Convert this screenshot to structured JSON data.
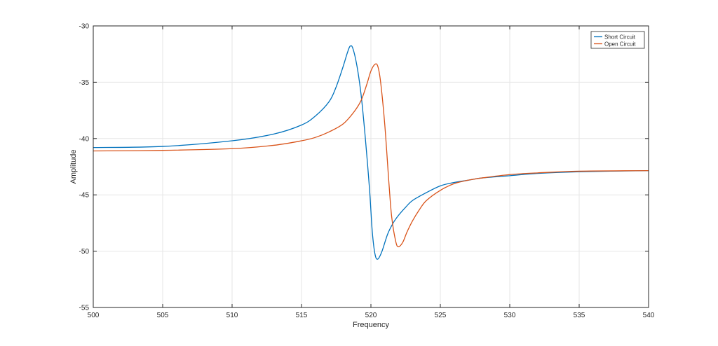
{
  "chart_data": {
    "type": "line",
    "title": "",
    "xlabel": "Frequency",
    "ylabel": "Amplitude",
    "xlim": [
      500,
      540
    ],
    "ylim": [
      -55,
      -30
    ],
    "xticks": [
      500,
      505,
      510,
      515,
      520,
      525,
      530,
      535,
      540
    ],
    "yticks": [
      -30,
      -35,
      -40,
      -45,
      -50,
      -55
    ],
    "grid": true,
    "legend_position": "top-right",
    "series": [
      {
        "name": "Short Circuit",
        "color": "#0072BD",
        "x": [
          500,
          505,
          510,
          513,
          515,
          516,
          517,
          517.5,
          518,
          518.3,
          518.5,
          518.7,
          519,
          519.3,
          519.6,
          519.9,
          520.1,
          520.3,
          520.5,
          520.8,
          521.2,
          521.6,
          522,
          522.5,
          523,
          524,
          525,
          526,
          527,
          528,
          530,
          532,
          535,
          540
        ],
        "y": [
          -40.8,
          -40.7,
          -40.2,
          -39.6,
          -38.8,
          -38.0,
          -36.7,
          -35.4,
          -33.6,
          -32.4,
          -31.8,
          -32.0,
          -33.6,
          -36.2,
          -40.0,
          -44.5,
          -48.3,
          -50.3,
          -50.7,
          -50.0,
          -48.5,
          -47.5,
          -46.8,
          -46.1,
          -45.5,
          -44.8,
          -44.2,
          -43.9,
          -43.7,
          -43.5,
          -43.3,
          -43.1,
          -42.95,
          -42.85
        ]
      },
      {
        "name": "Open Circuit",
        "color": "#D95319",
        "x": [
          500,
          505,
          510,
          513,
          515,
          516,
          517,
          518,
          518.8,
          519.3,
          519.7,
          520,
          520.3,
          520.5,
          520.7,
          521,
          521.3,
          521.5,
          521.8,
          522,
          522.3,
          522.6,
          523,
          523.5,
          524,
          525,
          526,
          527,
          528,
          530,
          532,
          535,
          540
        ],
        "y": [
          -41.1,
          -41.05,
          -40.9,
          -40.6,
          -40.2,
          -39.9,
          -39.4,
          -38.7,
          -37.6,
          -36.6,
          -35.2,
          -34.0,
          -33.4,
          -33.6,
          -35.0,
          -38.8,
          -44.0,
          -47.0,
          -49.2,
          -49.6,
          -49.2,
          -48.3,
          -47.3,
          -46.3,
          -45.5,
          -44.6,
          -44.0,
          -43.7,
          -43.5,
          -43.2,
          -43.05,
          -42.9,
          -42.85
        ]
      }
    ]
  }
}
